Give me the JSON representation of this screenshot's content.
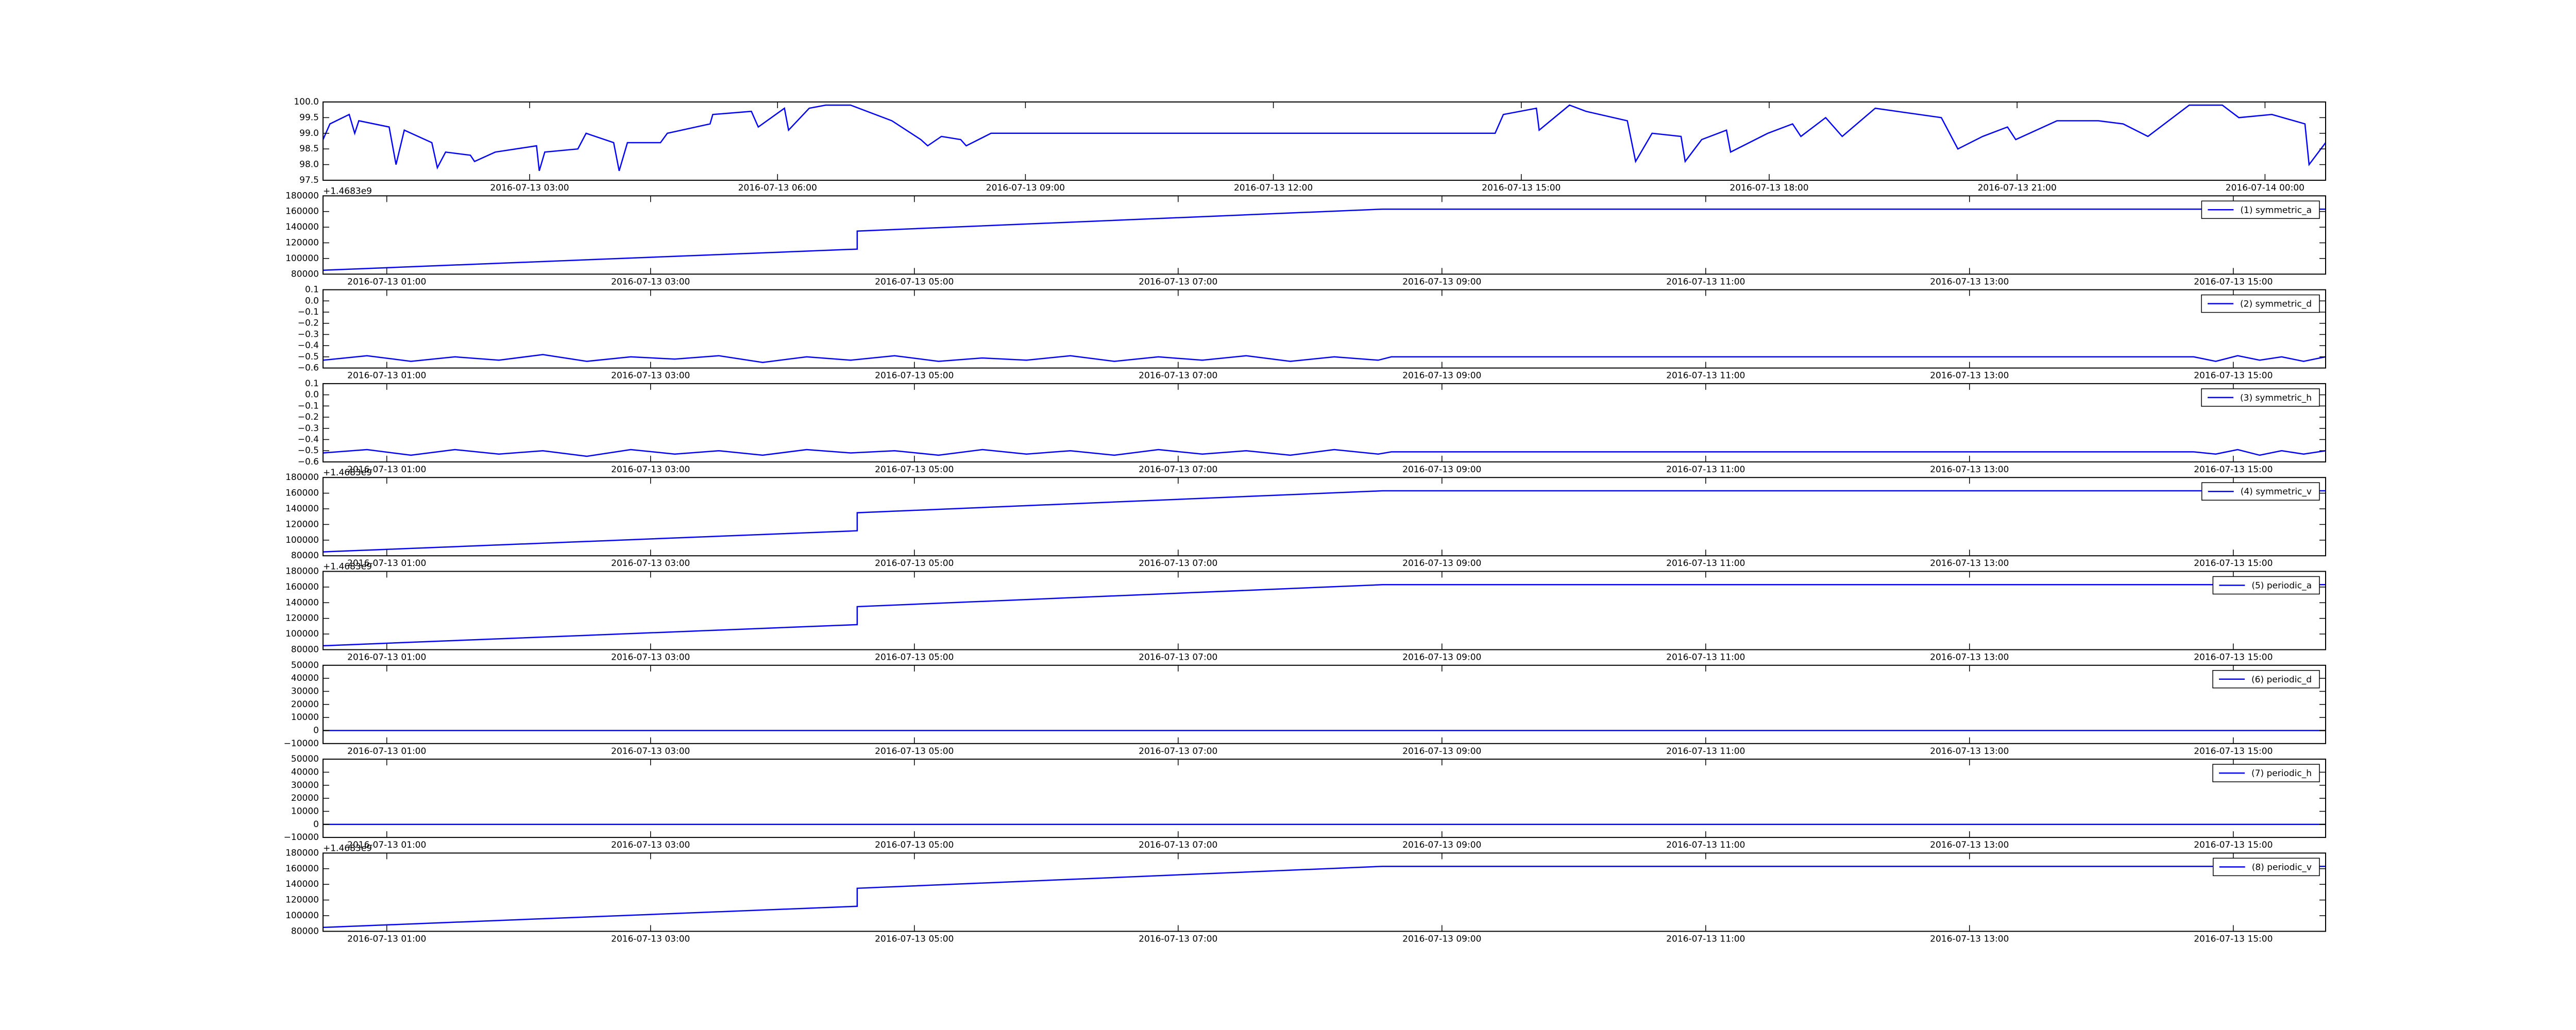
{
  "chart_data": [
    {
      "type": "line",
      "x": [
        "2016-07-13 00:30",
        "2016-07-13 00:35",
        "2016-07-13 00:49",
        "2016-07-13 00:53",
        "2016-07-13 00:56",
        "2016-07-13 01:18",
        "2016-07-13 01:23",
        "2016-07-13 01:29",
        "2016-07-13 01:49",
        "2016-07-13 01:53",
        "2016-07-13 01:59",
        "2016-07-13 02:17",
        "2016-07-13 02:20",
        "2016-07-13 02:35",
        "2016-07-13 03:05",
        "2016-07-13 03:07",
        "2016-07-13 03:11",
        "2016-07-13 03:35",
        "2016-07-13 03:41",
        "2016-07-13 04:01",
        "2016-07-13 04:05",
        "2016-07-13 04:11",
        "2016-07-13 04:35",
        "2016-07-13 04:40",
        "2016-07-13 05:11",
        "2016-07-13 05:13",
        "2016-07-13 05:41",
        "2016-07-13 05:46",
        "2016-07-13 06:05",
        "2016-07-13 06:08",
        "2016-07-13 06:23",
        "2016-07-13 06:35",
        "2016-07-13 06:53",
        "2016-07-13 07:23",
        "2016-07-13 07:44",
        "2016-07-13 07:49",
        "2016-07-13 07:59",
        "2016-07-13 08:13",
        "2016-07-13 08:17",
        "2016-07-13 08:35",
        "2016-07-13 14:41",
        "2016-07-13 14:47",
        "2016-07-13 15:11",
        "2016-07-13 15:13",
        "2016-07-13 15:35",
        "2016-07-13 15:47",
        "2016-07-13 16:17",
        "2016-07-13 16:23",
        "2016-07-13 16:35",
        "2016-07-13 16:56",
        "2016-07-13 16:59",
        "2016-07-13 17:11",
        "2016-07-13 17:29",
        "2016-07-13 17:32",
        "2016-07-13 17:59",
        "2016-07-13 18:17",
        "2016-07-13 18:23",
        "2016-07-13 18:41",
        "2016-07-13 18:53",
        "2016-07-13 19:17",
        "2016-07-13 20:05",
        "2016-07-13 20:17",
        "2016-07-13 20:35",
        "2016-07-13 20:53",
        "2016-07-13 20:59",
        "2016-07-13 21:29",
        "2016-07-13 21:59",
        "2016-07-13 22:17",
        "2016-07-13 22:35",
        "2016-07-13 23:05",
        "2016-07-13 23:29",
        "2016-07-13 23:41",
        "2016-07-14 00:05",
        "2016-07-14 00:29",
        "2016-07-14 00:32",
        "2016-07-14 00:44"
      ],
      "series": [
        {
          "color": "#0000ff",
          "values": [
            98.8,
            99.3,
            99.6,
            99.0,
            99.4,
            99.2,
            98.0,
            99.1,
            98.7,
            97.9,
            98.4,
            98.3,
            98.1,
            98.4,
            98.6,
            97.8,
            98.4,
            98.5,
            99.0,
            98.7,
            97.8,
            98.7,
            98.7,
            99.0,
            99.3,
            99.6,
            99.7,
            99.2,
            99.8,
            99.1,
            99.8,
            99.9,
            99.9,
            99.4,
            98.8,
            98.6,
            98.9,
            98.8,
            98.6,
            99.0,
            99.0,
            99.6,
            99.8,
            99.1,
            99.9,
            99.7,
            99.4,
            98.1,
            99.0,
            98.9,
            98.1,
            98.8,
            99.1,
            98.4,
            99.0,
            99.3,
            98.9,
            99.5,
            98.9,
            99.8,
            99.5,
            98.5,
            98.9,
            99.2,
            98.8,
            99.4,
            99.4,
            99.3,
            98.9,
            99.9,
            99.9,
            99.5,
            99.6,
            99.3,
            98.0,
            98.7
          ]
        }
      ],
      "xlim": [
        "2016-07-13 00:30",
        "2016-07-14 00:44"
      ],
      "xticks": [
        "2016-07-13 03:00",
        "2016-07-13 06:00",
        "2016-07-13 09:00",
        "2016-07-13 12:00",
        "2016-07-13 15:00",
        "2016-07-13 18:00",
        "2016-07-13 21:00",
        "2016-07-14 00:00"
      ],
      "ylim": [
        97.5,
        100
      ],
      "yticks": [
        97.5,
        {
          "value": 98,
          "label": "98.0"
        },
        98.5,
        {
          "value": 99,
          "label": "99.0"
        },
        99.5,
        {
          "value": 100,
          "label": "100.0"
        }
      ]
    },
    {
      "type": "line",
      "offset_text": "+1.4683e9",
      "legend": "upper right",
      "x": [
        "2016-07-13 00:31",
        "2016-07-13 04:34",
        "2016-07-13 04:34",
        "2016-07-13 08:33",
        "2016-07-13 15:42"
      ],
      "series": [
        {
          "name": "(1) symmetric_a",
          "color": "#0000ff",
          "values": [
            85000,
            112000,
            135000,
            163000,
            163000
          ]
        }
      ],
      "xlim": [
        "2016-07-13 00:31",
        "2016-07-13 15:42"
      ],
      "xticks": [
        "2016-07-13 01:00",
        "2016-07-13 03:00",
        "2016-07-13 05:00",
        "2016-07-13 07:00",
        "2016-07-13 09:00",
        "2016-07-13 11:00",
        "2016-07-13 13:00",
        "2016-07-13 15:00"
      ],
      "ylim": [
        80000,
        180000
      ],
      "yticks": [
        80000,
        100000,
        120000,
        140000,
        160000,
        180000
      ]
    },
    {
      "type": "line",
      "legend": "upper right",
      "x": [
        "2016-07-13 00:31",
        "2016-07-13 00:51",
        "2016-07-13 01:11",
        "2016-07-13 01:31",
        "2016-07-13 01:51",
        "2016-07-13 02:11",
        "2016-07-13 02:31",
        "2016-07-13 02:51",
        "2016-07-13 03:11",
        "2016-07-13 03:31",
        "2016-07-13 03:51",
        "2016-07-13 04:11",
        "2016-07-13 04:31",
        "2016-07-13 04:51",
        "2016-07-13 05:11",
        "2016-07-13 05:31",
        "2016-07-13 05:51",
        "2016-07-13 06:11",
        "2016-07-13 06:31",
        "2016-07-13 06:51",
        "2016-07-13 07:11",
        "2016-07-13 07:31",
        "2016-07-13 07:51",
        "2016-07-13 08:11",
        "2016-07-13 08:31",
        "2016-07-13 08:37",
        "2016-07-13 14:42",
        "2016-07-13 14:52",
        "2016-07-13 15:02",
        "2016-07-13 15:12",
        "2016-07-13 15:22",
        "2016-07-13 15:32",
        "2016-07-13 15:42"
      ],
      "series": [
        {
          "name": "(2) symmetric_d",
          "color": "#0000ff",
          "values": [
            -0.53,
            -0.49,
            -0.54,
            -0.5,
            -0.53,
            -0.48,
            -0.54,
            -0.5,
            -0.52,
            -0.49,
            -0.55,
            -0.5,
            -0.53,
            -0.49,
            -0.54,
            -0.51,
            -0.53,
            -0.49,
            -0.54,
            -0.5,
            -0.53,
            -0.49,
            -0.54,
            -0.5,
            -0.53,
            -0.5,
            -0.5,
            -0.54,
            -0.49,
            -0.53,
            -0.5,
            -0.54,
            -0.5
          ]
        }
      ],
      "xlim": [
        "2016-07-13 00:31",
        "2016-07-13 15:42"
      ],
      "xticks": [
        "2016-07-13 01:00",
        "2016-07-13 03:00",
        "2016-07-13 05:00",
        "2016-07-13 07:00",
        "2016-07-13 09:00",
        "2016-07-13 11:00",
        "2016-07-13 13:00",
        "2016-07-13 15:00"
      ],
      "ylim": [
        -0.6,
        0.1
      ],
      "yticks": [
        {
          "value": -0.6,
          "label": "−0.6"
        },
        {
          "value": -0.5,
          "label": "−0.5"
        },
        {
          "value": -0.4,
          "label": "−0.4"
        },
        {
          "value": -0.3,
          "label": "−0.3"
        },
        {
          "value": -0.2,
          "label": "−0.2"
        },
        {
          "value": -0.1,
          "label": "−0.1"
        },
        {
          "value": 0,
          "label": "0.0"
        },
        0.1
      ]
    },
    {
      "type": "line",
      "legend": "upper right",
      "x": [
        "2016-07-13 00:31",
        "2016-07-13 00:51",
        "2016-07-13 01:11",
        "2016-07-13 01:31",
        "2016-07-13 01:51",
        "2016-07-13 02:11",
        "2016-07-13 02:31",
        "2016-07-13 02:51",
        "2016-07-13 03:11",
        "2016-07-13 03:31",
        "2016-07-13 03:51",
        "2016-07-13 04:11",
        "2016-07-13 04:31",
        "2016-07-13 04:51",
        "2016-07-13 05:11",
        "2016-07-13 05:31",
        "2016-07-13 05:51",
        "2016-07-13 06:11",
        "2016-07-13 06:31",
        "2016-07-13 06:51",
        "2016-07-13 07:11",
        "2016-07-13 07:31",
        "2016-07-13 07:51",
        "2016-07-13 08:11",
        "2016-07-13 08:31",
        "2016-07-13 08:37",
        "2016-07-13 14:42",
        "2016-07-13 14:52",
        "2016-07-13 15:02",
        "2016-07-13 15:12",
        "2016-07-13 15:22",
        "2016-07-13 15:32",
        "2016-07-13 15:42"
      ],
      "series": [
        {
          "name": "(3) symmetric_h",
          "color": "#0000ff",
          "values": [
            -0.52,
            -0.49,
            -0.54,
            -0.49,
            -0.53,
            -0.5,
            -0.55,
            -0.49,
            -0.53,
            -0.5,
            -0.54,
            -0.49,
            -0.52,
            -0.5,
            -0.54,
            -0.49,
            -0.53,
            -0.5,
            -0.54,
            -0.49,
            -0.53,
            -0.5,
            -0.54,
            -0.49,
            -0.53,
            -0.51,
            -0.51,
            -0.53,
            -0.49,
            -0.54,
            -0.5,
            -0.53,
            -0.5
          ]
        }
      ],
      "xlim": [
        "2016-07-13 00:31",
        "2016-07-13 15:42"
      ],
      "xticks": [
        "2016-07-13 01:00",
        "2016-07-13 03:00",
        "2016-07-13 05:00",
        "2016-07-13 07:00",
        "2016-07-13 09:00",
        "2016-07-13 11:00",
        "2016-07-13 13:00",
        "2016-07-13 15:00"
      ],
      "ylim": [
        -0.6,
        0.1
      ],
      "yticks": [
        {
          "value": -0.6,
          "label": "−0.6"
        },
        {
          "value": -0.5,
          "label": "−0.5"
        },
        {
          "value": -0.4,
          "label": "−0.4"
        },
        {
          "value": -0.3,
          "label": "−0.3"
        },
        {
          "value": -0.2,
          "label": "−0.2"
        },
        {
          "value": -0.1,
          "label": "−0.1"
        },
        {
          "value": 0,
          "label": "0.0"
        },
        0.1
      ]
    },
    {
      "type": "line",
      "offset_text": "+1.4683e9",
      "legend": "upper right",
      "x": [
        "2016-07-13 00:31",
        "2016-07-13 04:34",
        "2016-07-13 04:34",
        "2016-07-13 08:33",
        "2016-07-13 15:42"
      ],
      "series": [
        {
          "name": "(4) symmetric_v",
          "color": "#0000ff",
          "values": [
            85000,
            112000,
            135000,
            163000,
            163000
          ]
        }
      ],
      "xlim": [
        "2016-07-13 00:31",
        "2016-07-13 15:42"
      ],
      "xticks": [
        "2016-07-13 01:00",
        "2016-07-13 03:00",
        "2016-07-13 05:00",
        "2016-07-13 07:00",
        "2016-07-13 09:00",
        "2016-07-13 11:00",
        "2016-07-13 13:00",
        "2016-07-13 15:00"
      ],
      "ylim": [
        80000,
        180000
      ],
      "yticks": [
        80000,
        100000,
        120000,
        140000,
        160000,
        180000
      ]
    },
    {
      "type": "line",
      "offset_text": "+1.4683e9",
      "legend": "upper right",
      "x": [
        "2016-07-13 00:31",
        "2016-07-13 04:34",
        "2016-07-13 04:34",
        "2016-07-13 08:33",
        "2016-07-13 15:42"
      ],
      "series": [
        {
          "name": "(5) periodic_a",
          "color": "#0000ff",
          "values": [
            85000,
            112000,
            135000,
            163000,
            163000
          ]
        }
      ],
      "xlim": [
        "2016-07-13 00:31",
        "2016-07-13 15:42"
      ],
      "xticks": [
        "2016-07-13 01:00",
        "2016-07-13 03:00",
        "2016-07-13 05:00",
        "2016-07-13 07:00",
        "2016-07-13 09:00",
        "2016-07-13 11:00",
        "2016-07-13 13:00",
        "2016-07-13 15:00"
      ],
      "ylim": [
        80000,
        180000
      ],
      "yticks": [
        80000,
        100000,
        120000,
        140000,
        160000,
        180000
      ]
    },
    {
      "type": "line",
      "legend": "upper right",
      "x": [
        "2016-07-13 00:31",
        "2016-07-13 15:42"
      ],
      "series": [
        {
          "name": "(6) periodic_d",
          "color": "#0000ff",
          "values": [
            0,
            0
          ]
        }
      ],
      "xlim": [
        "2016-07-13 00:31",
        "2016-07-13 15:42"
      ],
      "xticks": [
        "2016-07-13 01:00",
        "2016-07-13 03:00",
        "2016-07-13 05:00",
        "2016-07-13 07:00",
        "2016-07-13 09:00",
        "2016-07-13 11:00",
        "2016-07-13 13:00",
        "2016-07-13 15:00"
      ],
      "ylim": [
        -10000,
        50000
      ],
      "yticks": [
        {
          "value": -10000,
          "label": "−10000"
        },
        0,
        10000,
        20000,
        30000,
        40000,
        50000
      ]
    },
    {
      "type": "line",
      "legend": "upper right",
      "x": [
        "2016-07-13 00:31",
        "2016-07-13 15:42"
      ],
      "series": [
        {
          "name": "(7) periodic_h",
          "color": "#0000ff",
          "values": [
            0,
            0
          ]
        }
      ],
      "xlim": [
        "2016-07-13 00:31",
        "2016-07-13 15:42"
      ],
      "xticks": [
        "2016-07-13 01:00",
        "2016-07-13 03:00",
        "2016-07-13 05:00",
        "2016-07-13 07:00",
        "2016-07-13 09:00",
        "2016-07-13 11:00",
        "2016-07-13 13:00",
        "2016-07-13 15:00"
      ],
      "ylim": [
        -10000,
        50000
      ],
      "yticks": [
        {
          "value": -10000,
          "label": "−10000"
        },
        0,
        10000,
        20000,
        30000,
        40000,
        50000
      ]
    },
    {
      "type": "line",
      "offset_text": "+1.4683e9",
      "legend": "upper right",
      "x": [
        "2016-07-13 00:31",
        "2016-07-13 04:34",
        "2016-07-13 04:34",
        "2016-07-13 08:33",
        "2016-07-13 15:42"
      ],
      "series": [
        {
          "name": "(8) periodic_v",
          "color": "#0000ff",
          "values": [
            85000,
            112000,
            135000,
            163000,
            163000
          ]
        }
      ],
      "xlim": [
        "2016-07-13 00:31",
        "2016-07-13 15:42"
      ],
      "xticks": [
        "2016-07-13 01:00",
        "2016-07-13 03:00",
        "2016-07-13 05:00",
        "2016-07-13 07:00",
        "2016-07-13 09:00",
        "2016-07-13 11:00",
        "2016-07-13 13:00",
        "2016-07-13 15:00"
      ],
      "ylim": [
        80000,
        180000
      ],
      "yticks": [
        80000,
        100000,
        120000,
        140000,
        160000,
        180000
      ]
    }
  ]
}
